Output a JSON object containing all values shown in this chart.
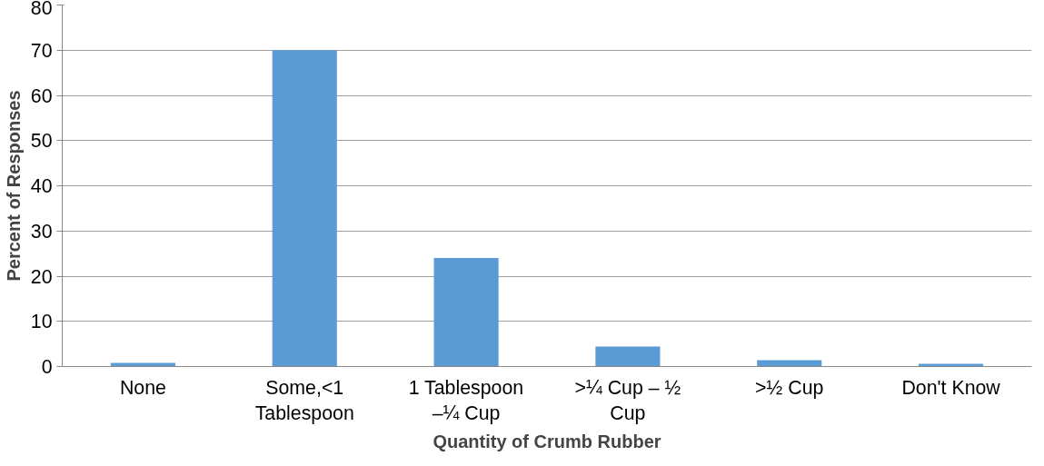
{
  "chart_data": {
    "type": "bar",
    "xlabel": "Quantity of Crumb Rubber",
    "ylabel": "Percent of Responses",
    "categories": [
      "None",
      "Some,<1 Tablespoon",
      "1 Tablespoon –¼ Cup",
      ">¼ Cup – ½ Cup",
      ">½ Cup",
      "Don't Know"
    ],
    "values": [
      0.8,
      70,
      24,
      4.4,
      1.4,
      0.6
    ],
    "color": "#5b9bd5",
    "ylim": [
      0,
      80
    ],
    "yticks": [
      0,
      10,
      20,
      30,
      40,
      50,
      60,
      70,
      80
    ],
    "grid": "y"
  }
}
